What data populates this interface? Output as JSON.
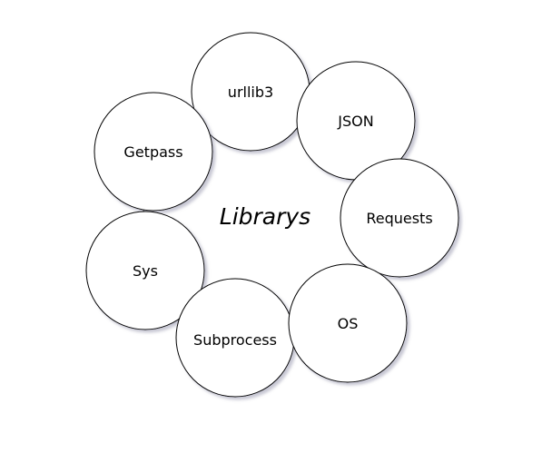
{
  "diagram": {
    "center_label": "Librarys",
    "nodes": [
      {
        "label": "urllib3"
      },
      {
        "label": "JSON"
      },
      {
        "label": "Getpass"
      },
      {
        "label": "Requests"
      },
      {
        "label": "Sys"
      },
      {
        "label": "OS"
      },
      {
        "label": "Subprocess"
      }
    ],
    "colors": {
      "stroke": "#000000",
      "fill": "#ffffff",
      "shadow": "#b8b8c8"
    }
  }
}
